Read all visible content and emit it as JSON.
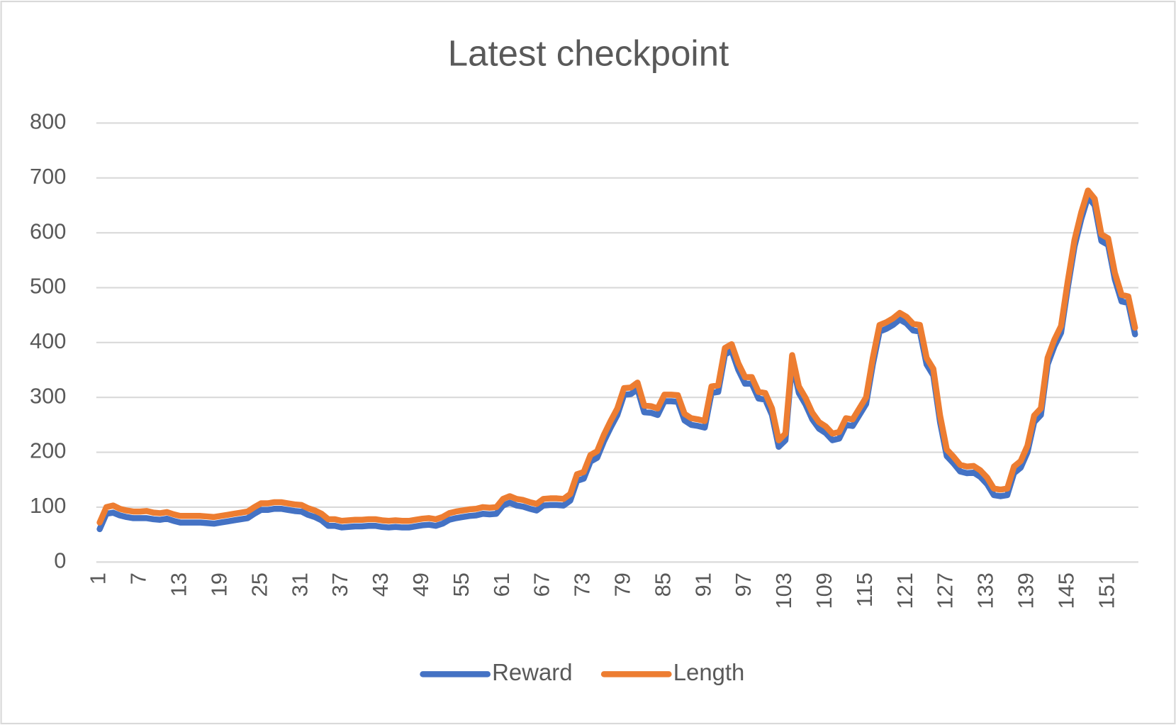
{
  "chart_data": {
    "type": "line",
    "title": "Latest checkpoint",
    "categories": [
      1,
      null,
      null,
      null,
      null,
      null,
      7,
      null,
      null,
      null,
      null,
      null,
      13,
      null,
      null,
      null,
      null,
      null,
      19,
      null,
      null,
      null,
      null,
      null,
      25,
      null,
      null,
      null,
      null,
      null,
      31,
      null,
      null,
      null,
      null,
      null,
      37,
      null,
      null,
      null,
      null,
      null,
      43,
      null,
      null,
      null,
      null,
      null,
      49,
      null,
      null,
      null,
      null,
      null,
      55,
      null,
      null,
      null,
      null,
      null,
      61,
      null,
      null,
      null,
      null,
      null,
      67,
      null,
      null,
      null,
      null,
      null,
      73,
      null,
      null,
      null,
      null,
      null,
      79,
      null,
      null,
      null,
      null,
      null,
      85,
      null,
      null,
      null,
      null,
      null,
      91,
      null,
      null,
      null,
      null,
      null,
      97,
      null,
      null,
      null,
      null,
      null,
      103,
      null,
      null,
      null,
      null,
      null,
      109,
      null,
      null,
      null,
      null,
      null,
      115,
      null,
      null,
      null,
      null,
      null,
      121,
      null,
      null,
      null,
      null,
      null,
      127,
      null,
      null,
      null,
      null,
      null,
      133,
      null,
      null,
      null,
      null,
      null,
      139,
      null,
      null,
      null,
      null,
      null,
      145,
      null,
      null,
      null,
      null,
      null,
      151,
      null,
      null,
      null,
      null
    ],
    "series": [
      {
        "name": "Reward",
        "color": "#4472c4",
        "values": [
          60,
          88,
          90,
          85,
          82,
          80,
          80,
          80,
          78,
          77,
          79,
          75,
          72,
          72,
          72,
          72,
          71,
          70,
          72,
          74,
          76,
          78,
          80,
          88,
          95,
          95,
          97,
          97,
          95,
          93,
          92,
          86,
          82,
          76,
          66,
          66,
          63,
          64,
          65,
          65,
          66,
          66,
          64,
          63,
          64,
          63,
          63,
          65,
          67,
          68,
          66,
          70,
          77,
          80,
          82,
          84,
          85,
          88,
          87,
          88,
          103,
          108,
          103,
          101,
          97,
          94,
          103,
          104,
          104,
          103,
          112,
          148,
          152,
          183,
          190,
          220,
          245,
          268,
          305,
          306,
          315,
          273,
          272,
          268,
          293,
          293,
          292,
          258,
          250,
          248,
          245,
          308,
          310,
          378,
          385,
          350,
          325,
          325,
          298,
          296,
          268,
          210,
          222,
          365,
          308,
          287,
          260,
          243,
          235,
          222,
          225,
          250,
          248,
          268,
          288,
          360,
          420,
          425,
          432,
          442,
          435,
          422,
          420,
          360,
          340,
          255,
          193,
          180,
          165,
          162,
          163,
          155,
          142,
          122,
          120,
          122,
          162,
          172,
          200,
          255,
          268,
          360,
          393,
          418,
          500,
          575,
          625,
          665,
          650,
          585,
          578,
          515,
          475,
          472,
          415
        ]
      },
      {
        "name": "Length",
        "color": "#ed7d31",
        "values": [
          72,
          100,
          103,
          97,
          94,
          92,
          92,
          93,
          90,
          89,
          91,
          87,
          84,
          84,
          84,
          84,
          83,
          82,
          84,
          86,
          88,
          90,
          92,
          100,
          107,
          107,
          109,
          109,
          107,
          105,
          104,
          98,
          94,
          88,
          78,
          78,
          75,
          76,
          77,
          77,
          78,
          78,
          76,
          75,
          76,
          75,
          75,
          77,
          79,
          80,
          78,
          82,
          89,
          92,
          94,
          96,
          97,
          100,
          99,
          100,
          115,
          120,
          115,
          113,
          109,
          106,
          115,
          116,
          116,
          115,
          124,
          160,
          164,
          195,
          202,
          232,
          257,
          280,
          317,
          318,
          327,
          285,
          284,
          280,
          305,
          305,
          304,
          270,
          262,
          260,
          257,
          320,
          322,
          390,
          397,
          362,
          337,
          337,
          310,
          308,
          280,
          222,
          234,
          377,
          320,
          299,
          272,
          255,
          247,
          234,
          237,
          262,
          260,
          280,
          300,
          372,
          432,
          437,
          444,
          454,
          447,
          434,
          432,
          372,
          352,
          267,
          205,
          192,
          177,
          174,
          175,
          167,
          154,
          134,
          132,
          134,
          174,
          184,
          212,
          267,
          280,
          372,
          405,
          430,
          512,
          587,
          637,
          677,
          662,
          597,
          590,
          527,
          487,
          484,
          427
        ]
      }
    ],
    "ylim": [
      0,
      800
    ],
    "yticks": [
      0,
      100,
      200,
      300,
      400,
      500,
      600,
      700,
      800
    ],
    "grid": true,
    "legend": "bottom"
  }
}
